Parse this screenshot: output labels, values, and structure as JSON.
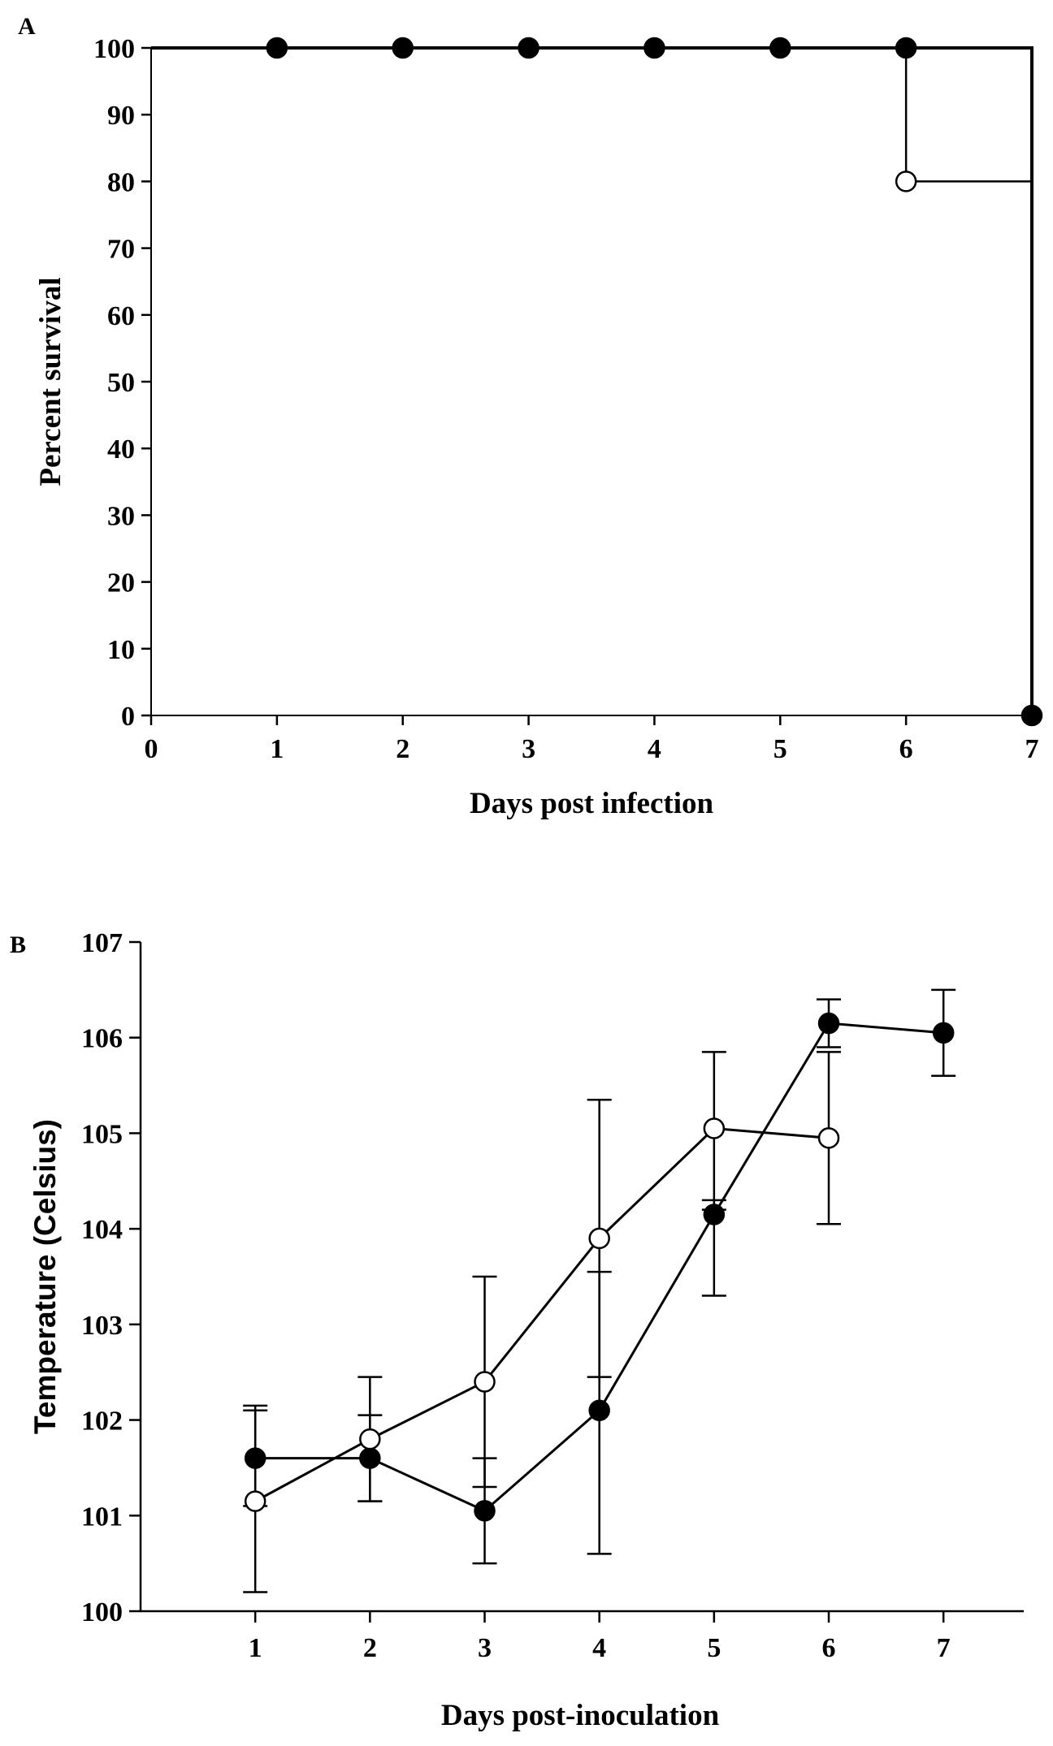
{
  "chart_data": [
    {
      "panel_label": "A",
      "type": "line",
      "step": true,
      "xlabel": "Days post infection",
      "ylabel": "Percent survival",
      "xlim": [
        0,
        7
      ],
      "ylim": [
        0,
        100
      ],
      "xticks": [
        "0",
        "1",
        "2",
        "3",
        "4",
        "5",
        "6",
        "7"
      ],
      "yticks": [
        "0",
        "10",
        "20",
        "30",
        "40",
        "50",
        "60",
        "70",
        "80",
        "90",
        "100"
      ],
      "series": [
        {
          "name": "filled",
          "marker": "filled-circle",
          "x": [
            0,
            1,
            2,
            3,
            4,
            5,
            6,
            7,
            7
          ],
          "y": [
            100,
            100,
            100,
            100,
            100,
            100,
            100,
            100,
            0
          ],
          "markers_x": [
            1,
            2,
            3,
            4,
            5,
            6,
            7
          ],
          "markers_y": [
            100,
            100,
            100,
            100,
            100,
            100,
            0
          ]
        },
        {
          "name": "open",
          "marker": "open-circle",
          "x": [
            0,
            6,
            6,
            7,
            7
          ],
          "y": [
            100,
            100,
            80,
            80,
            0
          ],
          "markers_x": [
            6
          ],
          "markers_y": [
            80
          ]
        }
      ]
    },
    {
      "panel_label": "B",
      "type": "line",
      "xlabel": "Days post-inoculation",
      "ylabel": "Temperature (Celsius)",
      "xlim": [
        0,
        7.7
      ],
      "ylim": [
        100,
        107
      ],
      "xticks": [
        "1",
        "2",
        "3",
        "4",
        "5",
        "6",
        "7"
      ],
      "yticks": [
        "100",
        "101",
        "102",
        "103",
        "104",
        "105",
        "106",
        "107"
      ],
      "series": [
        {
          "name": "filled",
          "marker": "filled-circle",
          "x": [
            1,
            2,
            3,
            4,
            5,
            6,
            7
          ],
          "y": [
            101.6,
            101.6,
            101.05,
            102.1,
            104.15,
            106.15,
            106.05
          ],
          "err_low": [
            101.1,
            101.15,
            100.5,
            100.6,
            103.3,
            105.9,
            105.6
          ],
          "err_high": [
            102.1,
            102.05,
            101.6,
            103.55,
            104.3,
            106.4,
            106.5
          ]
        },
        {
          "name": "open",
          "marker": "open-circle",
          "x": [
            1,
            2,
            3,
            4,
            5,
            6
          ],
          "y": [
            101.15,
            101.8,
            102.4,
            103.9,
            105.05,
            104.95
          ],
          "err_low": [
            100.2,
            101.15,
            101.3,
            102.45,
            104.2,
            104.05
          ],
          "err_high": [
            102.15,
            102.45,
            103.5,
            105.35,
            105.85,
            105.85
          ]
        }
      ]
    }
  ]
}
